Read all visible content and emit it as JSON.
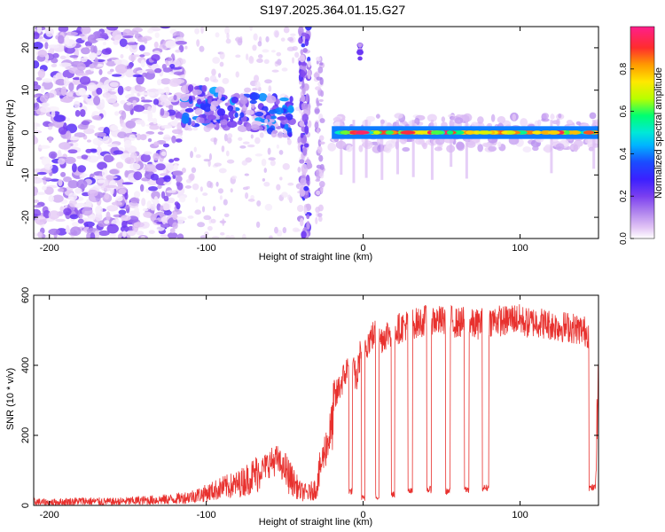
{
  "title": "S197.2025.364.01.15.G27",
  "chart_data": [
    {
      "type": "heatmap",
      "xlabel": "Height of straight line (km)",
      "ylabel": "Frequency (Hz)",
      "xlim": [
        -210,
        150
      ],
      "ylim": [
        -25,
        25
      ],
      "x_ticks": [
        -200,
        -100,
        0,
        100
      ],
      "y_ticks": [
        -20,
        -10,
        0,
        10,
        20
      ],
      "colorbar": {
        "label": "Normalized spectral amplitude",
        "range": [
          0,
          1
        ],
        "ticks": [
          0.0,
          0.2,
          0.4,
          0.6,
          0.8
        ],
        "palette": [
          "#ffffff",
          "#e3c6f5",
          "#b388ee",
          "#7a3ff0",
          "#3b20ff",
          "#1a4cff",
          "#00b4ff",
          "#00e8d8",
          "#00ff70",
          "#b8ff00",
          "#ffe800",
          "#ff9a00",
          "#ff2d2d",
          "#ff1e8c"
        ]
      },
      "features": [
        {
          "name": "noise",
          "x_range": [
            -210,
            -115
          ],
          "f_range": [
            -25,
            25
          ],
          "amplitude": 0.08
        },
        {
          "name": "rising band",
          "x_range": [
            -115,
            -45
          ],
          "f_range": [
            0,
            10
          ],
          "amplitude": 0.18
        },
        {
          "name": "vertical streak",
          "x": -37,
          "f_range": [
            -25,
            25
          ],
          "amplitude": 0.15
        },
        {
          "name": "tone near 0 Hz",
          "x_range": [
            -20,
            150
          ],
          "frequency": 0,
          "amplitude": 0.95
        },
        {
          "name": "blip",
          "x": -2,
          "frequency": 19,
          "amplitude": 0.2
        }
      ]
    },
    {
      "type": "line",
      "xlabel": "Height of straight line (km)",
      "ylabel": "SNR (10 * v/v)",
      "xlim": [
        -210,
        150
      ],
      "ylim": [
        0,
        600
      ],
      "x_ticks": [
        -200,
        -100,
        0,
        100
      ],
      "y_ticks": [
        0,
        200,
        400,
        600
      ],
      "series": [
        {
          "name": "SNR",
          "color": "#e8312e",
          "x": [
            -210,
            -200,
            -180,
            -160,
            -140,
            -120,
            -110,
            -100,
            -90,
            -80,
            -70,
            -60,
            -55,
            -50,
            -45,
            -40,
            -35,
            -30,
            -25,
            -20,
            -18,
            -15,
            -12,
            -10,
            -8,
            -6,
            -4,
            -2,
            0,
            2,
            5,
            8,
            10,
            15,
            20,
            25,
            30,
            35,
            40,
            45,
            50,
            55,
            60,
            65,
            70,
            75,
            80,
            85,
            90,
            95,
            100,
            105,
            110,
            115,
            120,
            125,
            130,
            135,
            140,
            145,
            148,
            150
          ],
          "y": [
            10,
            8,
            12,
            10,
            14,
            18,
            25,
            35,
            50,
            60,
            85,
            120,
            130,
            100,
            70,
            40,
            35,
            50,
            150,
            220,
            300,
            340,
            370,
            390,
            400,
            380,
            360,
            430,
            470,
            460,
            480,
            490,
            470,
            490,
            500,
            510,
            520,
            520,
            530,
            530,
            525,
            530,
            520,
            525,
            515,
            520,
            525,
            530,
            525,
            535,
            530,
            520,
            525,
            520,
            515,
            510,
            510,
            505,
            500,
            490,
            50,
            400
          ]
        }
      ],
      "dips": [
        {
          "x": -8,
          "width": 2,
          "value": 40
        },
        {
          "x": 0,
          "width": 2,
          "value": 20
        },
        {
          "x": 9,
          "width": 2,
          "value": 25
        },
        {
          "x": 19,
          "width": 2,
          "value": 30
        },
        {
          "x": 30,
          "width": 3,
          "value": 40
        },
        {
          "x": 42,
          "width": 3,
          "value": 45
        },
        {
          "x": 54,
          "width": 3,
          "value": 40
        },
        {
          "x": 66,
          "width": 3,
          "value": 45
        },
        {
          "x": 78,
          "width": 4,
          "value": 50
        },
        {
          "x": 146,
          "width": 4,
          "value": 50
        }
      ]
    }
  ]
}
